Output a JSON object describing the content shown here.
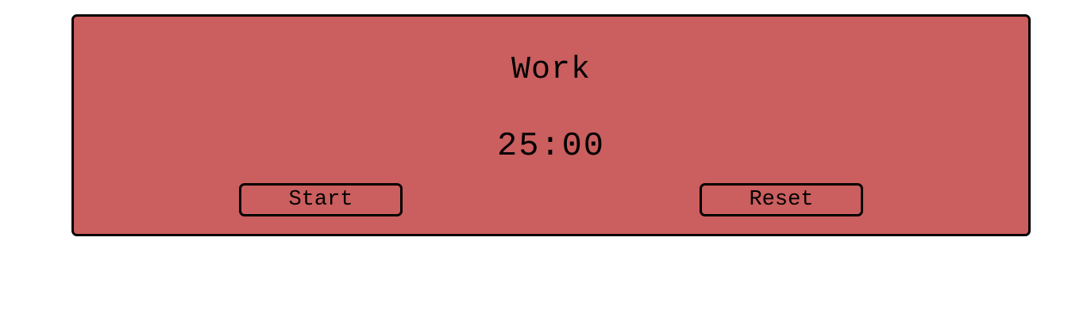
{
  "timer": {
    "mode": "Work",
    "time": "25:00",
    "start_label": "Start",
    "reset_label": "Reset"
  },
  "colors": {
    "panel_background": "#cb5e5e",
    "border": "#000000",
    "page_background": "#ffffff"
  }
}
